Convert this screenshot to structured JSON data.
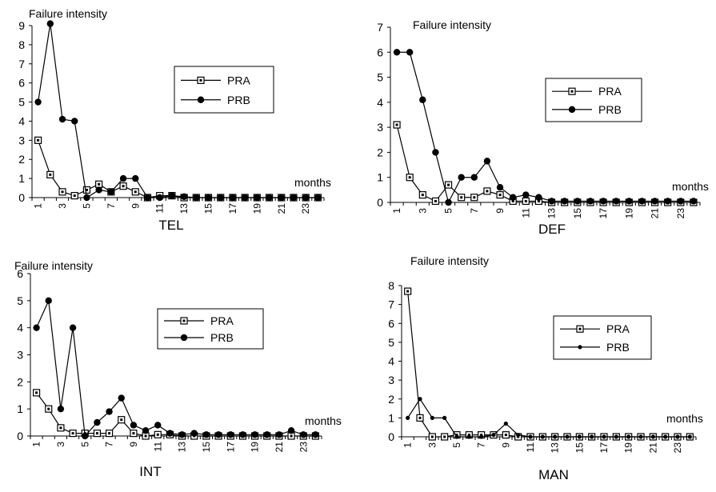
{
  "chart_data": [
    {
      "type": "line",
      "title": "TEL",
      "ylabel": "Failure intensity",
      "xlabel": "months",
      "ylim": [
        0,
        9
      ],
      "yticks": [
        "0",
        "1",
        "2",
        "3",
        "4",
        "5",
        "6",
        "7",
        "8",
        "9"
      ],
      "xticks": [
        "1",
        "3",
        "5",
        "7",
        "9",
        "11",
        "13",
        "15",
        "17",
        "19",
        "21",
        "23"
      ],
      "x": [
        1,
        2,
        3,
        4,
        5,
        6,
        7,
        8,
        9,
        10,
        11,
        12,
        13,
        14,
        15,
        16,
        17,
        18,
        19,
        20,
        21,
        22,
        23,
        24
      ],
      "legend_position": "top-right",
      "series": [
        {
          "name": "PRA",
          "marker": "square",
          "values": [
            3.0,
            1.2,
            0.3,
            0.1,
            0.4,
            0.7,
            0.3,
            0.6,
            0.3,
            0.0,
            0.1,
            0.1,
            0.0,
            0.0,
            0.0,
            0.0,
            0.0,
            0.0,
            0.0,
            0.0,
            0.0,
            0.0,
            0.0,
            0.0
          ]
        },
        {
          "name": "PRB",
          "marker": "circle",
          "values": [
            5.0,
            9.1,
            4.1,
            4.0,
            0.0,
            0.4,
            0.3,
            1.0,
            1.0,
            0.0,
            0.0,
            0.1,
            0.05,
            0.0,
            0.0,
            0.0,
            0.0,
            0.0,
            0.0,
            0.0,
            0.0,
            0.0,
            0.0,
            0.0
          ]
        }
      ]
    },
    {
      "type": "line",
      "title": "DEF",
      "ylabel": "Failure intensity",
      "xlabel": "months",
      "ylim": [
        0,
        7
      ],
      "yticks": [
        "0",
        "1",
        "2",
        "3",
        "4",
        "5",
        "6",
        "7"
      ],
      "xticks": [
        "1",
        "3",
        "5",
        "7",
        "9",
        "11",
        "13",
        "15",
        "17",
        "19",
        "21",
        "23"
      ],
      "x": [
        1,
        2,
        3,
        4,
        5,
        6,
        7,
        8,
        9,
        10,
        11,
        12,
        13,
        14,
        15,
        16,
        17,
        18,
        19,
        20,
        21,
        22,
        23,
        24
      ],
      "legend_position": "top-right",
      "series": [
        {
          "name": "PRA",
          "marker": "square",
          "values": [
            3.1,
            1.0,
            0.3,
            0.05,
            0.7,
            0.2,
            0.2,
            0.45,
            0.3,
            0.05,
            0.05,
            0.05,
            0.0,
            0.0,
            0.0,
            0.0,
            0.0,
            0.0,
            0.0,
            0.0,
            0.0,
            0.0,
            0.0,
            0.0
          ]
        },
        {
          "name": "PRB",
          "marker": "circle",
          "values": [
            6.0,
            6.0,
            4.1,
            2.0,
            0.0,
            1.0,
            1.0,
            1.65,
            0.6,
            0.2,
            0.3,
            0.2,
            0.05,
            0.05,
            0.05,
            0.05,
            0.05,
            0.05,
            0.05,
            0.05,
            0.05,
            0.05,
            0.05,
            0.05
          ]
        }
      ]
    },
    {
      "type": "line",
      "title": "INT",
      "ylabel": "Failure intensity",
      "xlabel": "months",
      "ylim": [
        0,
        6
      ],
      "yticks": [
        "0",
        "1",
        "2",
        "3",
        "4",
        "5",
        "6"
      ],
      "xticks": [
        "1",
        "3",
        "5",
        "7",
        "9",
        "11",
        "13",
        "15",
        "17",
        "19",
        "21",
        "23"
      ],
      "x": [
        1,
        2,
        3,
        4,
        5,
        6,
        7,
        8,
        9,
        10,
        11,
        12,
        13,
        14,
        15,
        16,
        17,
        18,
        19,
        20,
        21,
        22,
        23,
        24
      ],
      "legend_position": "top-right",
      "series": [
        {
          "name": "PRA",
          "marker": "square",
          "values": [
            1.6,
            1.0,
            0.3,
            0.1,
            0.1,
            0.1,
            0.1,
            0.6,
            0.1,
            0.0,
            0.05,
            0.05,
            0.0,
            0.0,
            0.0,
            0.0,
            0.0,
            0.0,
            0.0,
            0.0,
            0.0,
            0.0,
            0.0,
            0.0
          ]
        },
        {
          "name": "PRB",
          "marker": "circle",
          "values": [
            4.0,
            5.0,
            1.0,
            4.0,
            0.0,
            0.5,
            0.9,
            1.4,
            0.4,
            0.2,
            0.4,
            0.1,
            0.05,
            0.1,
            0.05,
            0.05,
            0.05,
            0.05,
            0.05,
            0.05,
            0.05,
            0.2,
            0.05,
            0.05
          ]
        }
      ]
    },
    {
      "type": "line",
      "title": "MAN",
      "ylabel": "Failure intensity",
      "xlabel": "months",
      "ylim": [
        0,
        8
      ],
      "yticks": [
        "0",
        "1",
        "2",
        "3",
        "4",
        "5",
        "6",
        "7",
        "8"
      ],
      "xticks": [
        "1",
        "3",
        "5",
        "7",
        "9",
        "11",
        "13",
        "15",
        "17",
        "19",
        "21",
        "23"
      ],
      "x": [
        1,
        2,
        3,
        4,
        5,
        6,
        7,
        8,
        9,
        10,
        11,
        12,
        13,
        14,
        15,
        16,
        17,
        18,
        19,
        20,
        21,
        22,
        23,
        24
      ],
      "legend_position": "top-right",
      "series": [
        {
          "name": "PRA",
          "marker": "square",
          "values": [
            7.7,
            1.0,
            0.0,
            0.0,
            0.1,
            0.1,
            0.1,
            0.1,
            0.1,
            0.0,
            0.0,
            0.0,
            0.0,
            0.0,
            0.0,
            0.0,
            0.0,
            0.0,
            0.0,
            0.0,
            0.0,
            0.0,
            0.0,
            0.0
          ]
        },
        {
          "name": "PRB",
          "marker": "dot",
          "values": [
            1.0,
            2.0,
            1.0,
            1.0,
            0.0,
            0.0,
            0.0,
            0.1,
            0.7,
            0.1,
            0.0,
            0.0,
            0.0,
            0.0,
            0.0,
            0.0,
            0.0,
            0.0,
            0.0,
            0.0,
            0.0,
            0.0,
            0.0,
            0.0
          ]
        }
      ]
    }
  ]
}
